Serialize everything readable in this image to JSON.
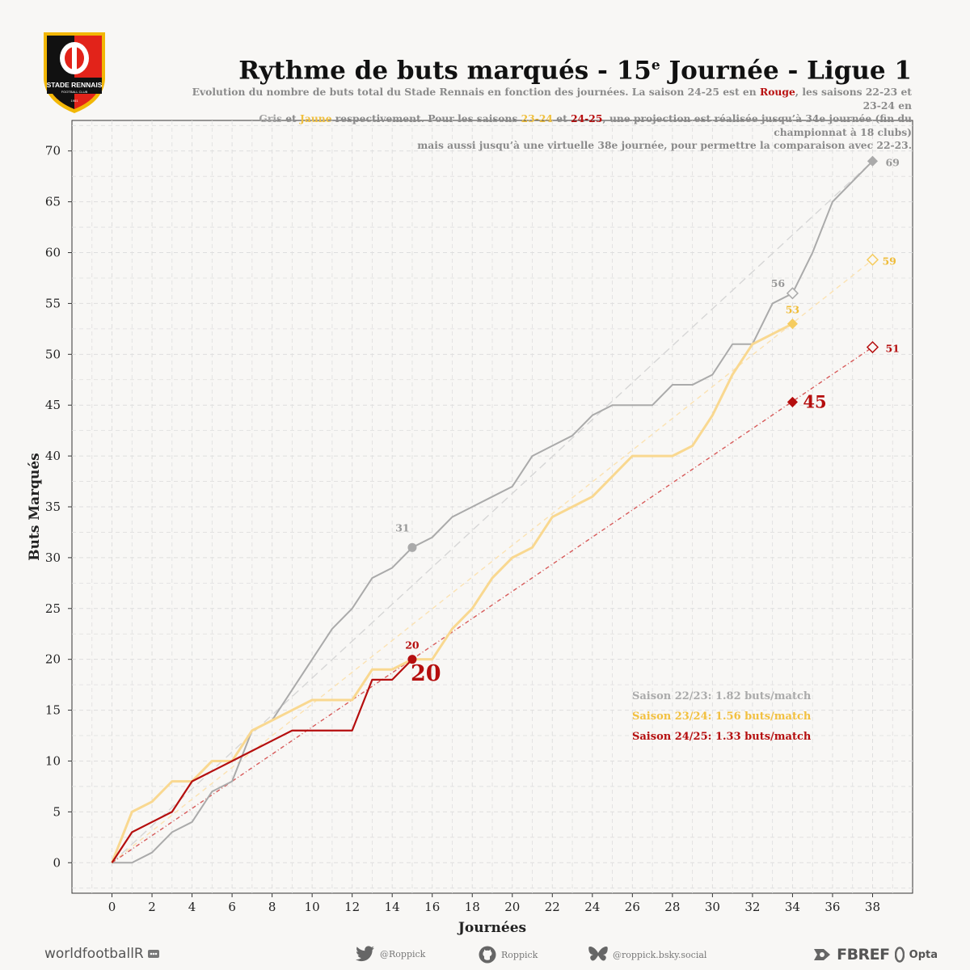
{
  "header": {
    "title_main": "Rythme de buts marqués - 15",
    "title_sup": "e",
    "title_rest": " Journée - Ligue 1",
    "subtitle": {
      "p1": "Evolution du nombre de buts total du Stade Rennais en fonction des journées. La saison 24-25 est en ",
      "rouge": "Rouge",
      "p2": ", les saisons 22-23 et 23-24 en",
      "gris": "Gris",
      "p3": " et ",
      "jaune": "Jaune",
      "p4": " respectivement. Pour les saisons ",
      "s2324": "23-24",
      "p5": "  et ",
      "s2425": "24-25",
      "p6": ", une projection est réalisée jusqu’à 34e journée (fin du championnat à 18 clubs)",
      "line3": "mais aussi jusqu’à une virtuelle 38e journée, pour permettre la comparaison avec 22-23."
    }
  },
  "logo": {
    "club_name": "STADE RENNAIS",
    "club_sub": "FOOTBALL CLUB",
    "year": "1901",
    "colors": {
      "red": "#e2231a",
      "black": "#111111",
      "gold": "#f2b705"
    }
  },
  "chart_data": {
    "type": "line",
    "xlabel": "Journées",
    "ylabel": "Buts Marqués",
    "xlim": [
      -2,
      40
    ],
    "ylim": [
      -3,
      73
    ],
    "xticks": [
      0,
      2,
      4,
      6,
      8,
      10,
      12,
      14,
      16,
      18,
      20,
      22,
      24,
      26,
      28,
      30,
      32,
      34,
      36,
      38
    ],
    "yticks": [
      0,
      5,
      10,
      15,
      20,
      25,
      30,
      35,
      40,
      45,
      50,
      55,
      60,
      65,
      70
    ],
    "grid": true,
    "series": [
      {
        "name": "Saison 22/23",
        "color": "#aaaaaa",
        "x": [
          0,
          1,
          2,
          3,
          4,
          5,
          6,
          7,
          8,
          9,
          10,
          11,
          12,
          13,
          14,
          15,
          16,
          17,
          18,
          19,
          20,
          21,
          22,
          23,
          24,
          25,
          26,
          27,
          28,
          29,
          30,
          31,
          32,
          33,
          34,
          35,
          36,
          37,
          38
        ],
        "values": [
          0,
          0,
          1,
          3,
          4,
          7,
          8,
          13,
          14,
          17,
          20,
          23,
          25,
          28,
          29,
          31,
          32,
          34,
          35,
          36,
          37,
          40,
          41,
          42,
          44,
          45,
          45,
          45,
          47,
          47,
          48,
          51,
          51,
          55,
          56,
          60,
          65,
          67,
          69
        ],
        "projection": {
          "from": [
            0,
            0
          ],
          "to": [
            38,
            69
          ]
        },
        "markers": [
          {
            "x": 15,
            "y": 31,
            "label": "31",
            "shape": "circle"
          },
          {
            "x": 34,
            "y": 56,
            "label": "56",
            "shape": "diamond-open"
          },
          {
            "x": 38,
            "y": 69,
            "label": "69",
            "shape": "diamond"
          }
        ]
      },
      {
        "name": "Saison 23/24",
        "color": "#f9d890",
        "x": [
          0,
          1,
          2,
          3,
          4,
          5,
          6,
          7,
          8,
          9,
          10,
          11,
          12,
          13,
          14,
          15,
          16,
          17,
          18,
          19,
          20,
          21,
          22,
          23,
          24,
          25,
          26,
          27,
          28,
          29,
          30,
          31,
          32,
          33,
          34
        ],
        "values": [
          0,
          5,
          6,
          8,
          8,
          10,
          10,
          13,
          14,
          15,
          16,
          16,
          16,
          19,
          19,
          20,
          20,
          23,
          25,
          28,
          30,
          31,
          34,
          35,
          36,
          38,
          40,
          40,
          40,
          41,
          44,
          48,
          51,
          52,
          53
        ],
        "projection": {
          "from": [
            0,
            0
          ],
          "to": [
            38,
            59.3
          ]
        },
        "markers": [
          {
            "x": 34,
            "y": 53,
            "label": "53",
            "shape": "diamond"
          },
          {
            "x": 38,
            "y": 59.3,
            "label": "59",
            "shape": "diamond-open"
          }
        ]
      },
      {
        "name": "Saison 24/25",
        "color": "#b50e0e",
        "x": [
          0,
          1,
          2,
          3,
          4,
          5,
          6,
          7,
          8,
          9,
          10,
          11,
          12,
          13,
          14,
          15
        ],
        "values": [
          0,
          3,
          4,
          5,
          8,
          9,
          10,
          11,
          12,
          13,
          13,
          13,
          13,
          18,
          18,
          20
        ],
        "projection": {
          "from": [
            0,
            0
          ],
          "to": [
            38,
            50.7
          ]
        },
        "markers": [
          {
            "x": 15,
            "y": 20,
            "label": "20",
            "shape": "circle"
          },
          {
            "x": 34,
            "y": 45.3,
            "label": "45",
            "shape": "diamond"
          },
          {
            "x": 38,
            "y": 50.7,
            "label": "51",
            "shape": "diamond-open"
          }
        ]
      }
    ],
    "annotations": [
      {
        "x": 15,
        "y": 20,
        "text": "20",
        "color": "#b50e0e"
      }
    ],
    "stats": [
      {
        "text": "Saison 22/23: 1.82 buts/match",
        "color": "#aaaaaa"
      },
      {
        "text": "Saison 23/24: 1.56 buts/match",
        "color": "#f2c040"
      },
      {
        "text": "Saison 24/25: 1.33 buts/match",
        "color": "#b50e0e"
      }
    ]
  },
  "footer": {
    "brand_left": "worldfootballR",
    "twitter": "@Roppick",
    "github": "Roppick",
    "bluesky": "@roppick.bsky.social",
    "fbref": "FBREF",
    "opta": "Opta"
  }
}
